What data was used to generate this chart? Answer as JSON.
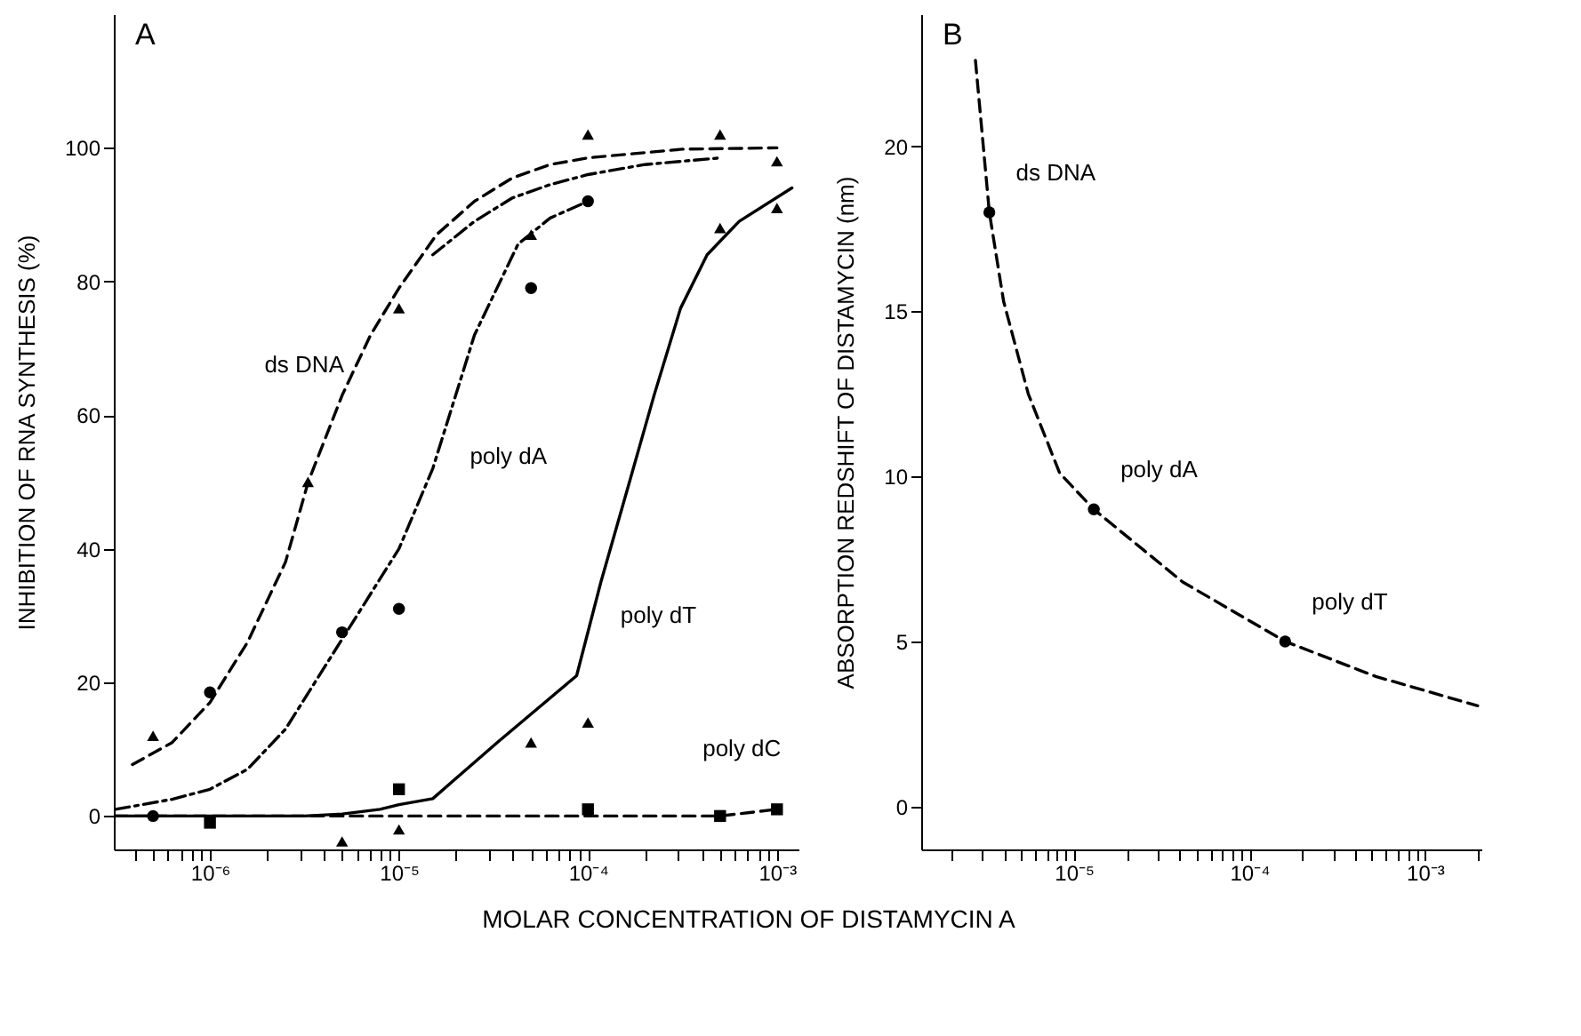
{
  "chart_data": [
    {
      "type": "line",
      "xlabel": "MOLAR CONCENTRATION OF DISTAMYCIN A",
      "ylabel": "INHIBITION OF RNA SYNTHESIS (%)",
      "annotations": [
        "A"
      ],
      "log": "x",
      "xlim": [
        3.1e-07,
        0.0013
      ],
      "ylim": [
        -5,
        120
      ],
      "yticks": [
        0,
        20,
        40,
        60,
        80,
        100
      ],
      "xticks": [
        {
          "value": 4e-07,
          "label": null
        },
        {
          "value": 5e-07,
          "label": null
        },
        {
          "value": 6e-07,
          "label": null
        },
        {
          "value": 7e-07,
          "label": null
        },
        {
          "value": 8e-07,
          "label": null
        },
        {
          "value": 9e-07,
          "label": null
        },
        {
          "value": 1e-06,
          "label": "10⁻⁶"
        },
        {
          "value": 2e-06,
          "label": null
        },
        {
          "value": 3e-06,
          "label": null
        },
        {
          "value": 4e-06,
          "label": null
        },
        {
          "value": 5e-06,
          "label": null
        },
        {
          "value": 6e-06,
          "label": null
        },
        {
          "value": 7e-06,
          "label": null
        },
        {
          "value": 8e-06,
          "label": null
        },
        {
          "value": 9e-06,
          "label": null
        },
        {
          "value": 1e-05,
          "label": "10⁻⁵"
        },
        {
          "value": 2e-05,
          "label": null
        },
        {
          "value": 3e-05,
          "label": null
        },
        {
          "value": 4e-05,
          "label": null
        },
        {
          "value": 5e-05,
          "label": null
        },
        {
          "value": 6e-05,
          "label": null
        },
        {
          "value": 7e-05,
          "label": null
        },
        {
          "value": 8e-05,
          "label": null
        },
        {
          "value": 9e-05,
          "label": null
        },
        {
          "value": 0.0001,
          "label": "10⁻⁴"
        },
        {
          "value": 0.0002,
          "label": null
        },
        {
          "value": 0.0003,
          "label": null
        },
        {
          "value": 0.0004,
          "label": null
        },
        {
          "value": 0.0005,
          "label": null
        },
        {
          "value": 0.0006,
          "label": null
        },
        {
          "value": 0.0007,
          "label": null
        },
        {
          "value": 0.0008,
          "label": null
        },
        {
          "value": 0.0009,
          "label": null
        },
        {
          "value": 0.001,
          "label": "10⁻³"
        }
      ],
      "grid": false,
      "series": [
        {
          "type": "scatter",
          "marker": "triangle",
          "color": "#000000",
          "x": [
            3.3e-06,
            1e-05,
            5e-05,
            0.0001,
            0.0005,
            0.001
          ],
          "values": [
            50,
            76,
            87,
            102,
            102,
            98
          ]
        },
        {
          "type": "scatter",
          "marker": "circle",
          "color": "#000000",
          "x": [
            5e-07,
            1e-06,
            5e-06,
            1e-05,
            5e-05,
            0.0001
          ],
          "values": [
            0,
            18.5,
            27.5,
            31,
            79,
            92
          ]
        },
        {
          "type": "scatter",
          "marker": "triangle",
          "color": "#000000",
          "x": [
            5e-07,
            5e-06,
            1e-05,
            5e-05,
            0.0001,
            0.0005,
            0.001
          ],
          "values": [
            12,
            -3.8,
            -2,
            11,
            14,
            88,
            91
          ]
        },
        {
          "type": "scatter",
          "marker": "square",
          "color": "#000000",
          "x": [
            1e-06,
            1e-05,
            0.0001,
            0.0005,
            0.001
          ],
          "values": [
            -1,
            4,
            1,
            0,
            1
          ]
        },
        {
          "name": "ds DNA",
          "line_style": "dashed",
          "color": "#000000",
          "x": [
            3.89e-07,
            6.31e-07,
            1e-06,
            1.58e-06,
            2.51e-06,
            3.31e-06,
            5.01e-06,
            7.08e-06,
            1e-05,
            1.58e-05,
            2.51e-05,
            3.98e-05,
            6.31e-05,
            0.0001,
            0.000316,
            0.001
          ],
          "values": [
            7.7,
            11,
            17,
            26,
            38,
            50,
            63,
            72,
            79,
            87,
            92,
            95.5,
            97.5,
            98.5,
            99.8,
            100
          ]
        },
        {
          "name": "poly dA",
          "line_style": "dotted",
          "color": "#000000",
          "x": [
            3.16e-07,
            6.31e-07,
            1e-06,
            1.58e-06,
            2.51e-06,
            3.98e-06,
            6.31e-06,
            1e-05,
            1.51e-05,
            2.51e-05,
            4.27e-05,
            6.31e-05,
            0.0001
          ],
          "values": [
            1,
            2.5,
            4,
            7,
            13,
            22,
            31,
            40,
            52,
            72,
            85.6,
            89.5,
            92
          ]
        },
        {
          "name": "poly dT",
          "line_style": "solid",
          "color": "#000000",
          "x": [
            3.16e-07,
            3.16e-06,
            5.01e-06,
            7.94e-06,
            1e-05,
            1.51e-05,
            3.31e-05,
            8.71e-05,
            0.000117,
            0.000162,
            0.000224,
            0.000309,
            0.000427,
            0.000631,
            0.0012
          ],
          "values": [
            0,
            0,
            0.3,
            1,
            1.7,
            2.6,
            11,
            21,
            35,
            49,
            63,
            76,
            84,
            89,
            94
          ]
        },
        {
          "name": "poly dC",
          "line_style": "dashed",
          "color": "#000000",
          "x": [
            3.16e-07,
            0.0005,
            0.001
          ],
          "values": [
            0,
            0,
            1
          ]
        },
        {
          "line_style": "dotted",
          "color": "#000000",
          "x": [
            1.51e-05,
            2.51e-05,
            3.98e-05,
            6.31e-05,
            0.0001,
            0.0002,
            0.000501
          ],
          "values": [
            84,
            89,
            92.5,
            94.5,
            96,
            97.5,
            98.5
          ]
        }
      ]
    },
    {
      "type": "line",
      "ylabel": "ABSORPTION REDSHIFT OF DISTAMYCIN (nm)",
      "log": "x",
      "xlim": [
        1.35e-06,
        0.0021
      ],
      "ylim": [
        -1.3,
        24
      ],
      "yticks": [
        0,
        5,
        10,
        15,
        20
      ],
      "xticks": [
        {
          "value": 2e-06,
          "label": null
        },
        {
          "value": 3e-06,
          "label": null
        },
        {
          "value": 4e-06,
          "label": null
        },
        {
          "value": 5e-06,
          "label": null
        },
        {
          "value": 6e-06,
          "label": null
        },
        {
          "value": 7e-06,
          "label": null
        },
        {
          "value": 8e-06,
          "label": null
        },
        {
          "value": 9e-06,
          "label": null
        },
        {
          "value": 1e-05,
          "label": "10⁻⁵"
        },
        {
          "value": 2e-05,
          "label": null
        },
        {
          "value": 3e-05,
          "label": null
        },
        {
          "value": 4e-05,
          "label": null
        },
        {
          "value": 5e-05,
          "label": null
        },
        {
          "value": 6e-05,
          "label": null
        },
        {
          "value": 7e-05,
          "label": null
        },
        {
          "value": 8e-05,
          "label": null
        },
        {
          "value": 9e-05,
          "label": null
        },
        {
          "value": 0.0001,
          "label": "10⁻⁴"
        },
        {
          "value": 0.0002,
          "label": null
        },
        {
          "value": 0.0003,
          "label": null
        },
        {
          "value": 0.0004,
          "label": null
        },
        {
          "value": 0.0005,
          "label": null
        },
        {
          "value": 0.0006,
          "label": null
        },
        {
          "value": 0.0007,
          "label": null
        },
        {
          "value": 0.0008,
          "label": null
        },
        {
          "value": 0.0009,
          "label": null
        },
        {
          "value": 0.001,
          "label": "10⁻³"
        },
        {
          "value": 0.002,
          "label": null
        }
      ],
      "grid": false,
      "annotations": [
        "B",
        {
          "text": "ds DNA",
          "x": 3.3e-06,
          "y": 18
        },
        {
          "text": "poly dA",
          "x": 1.3e-05,
          "y": 9
        },
        {
          "text": "poly dT",
          "x": 0.00016,
          "y": 5
        }
      ],
      "series": [
        {
          "line_style": "dashed",
          "color": "#000000",
          "x": [
            2.75e-06,
            3.3e-06,
            3.98e-06,
            5.5e-06,
            8.3e-06,
            1.3e-05,
            4.17e-05,
            0.00016,
            0.000525,
            0.002
          ],
          "values": [
            22.6,
            18,
            15.3,
            12.5,
            10.1,
            9,
            6.8,
            5,
            3.94,
            3.05
          ]
        },
        {
          "type": "scatter",
          "marker": "circle",
          "color": "#000000",
          "x": [
            3.3e-06,
            1.3e-05,
            0.00016
          ],
          "values": [
            18,
            9,
            5
          ]
        }
      ]
    }
  ]
}
